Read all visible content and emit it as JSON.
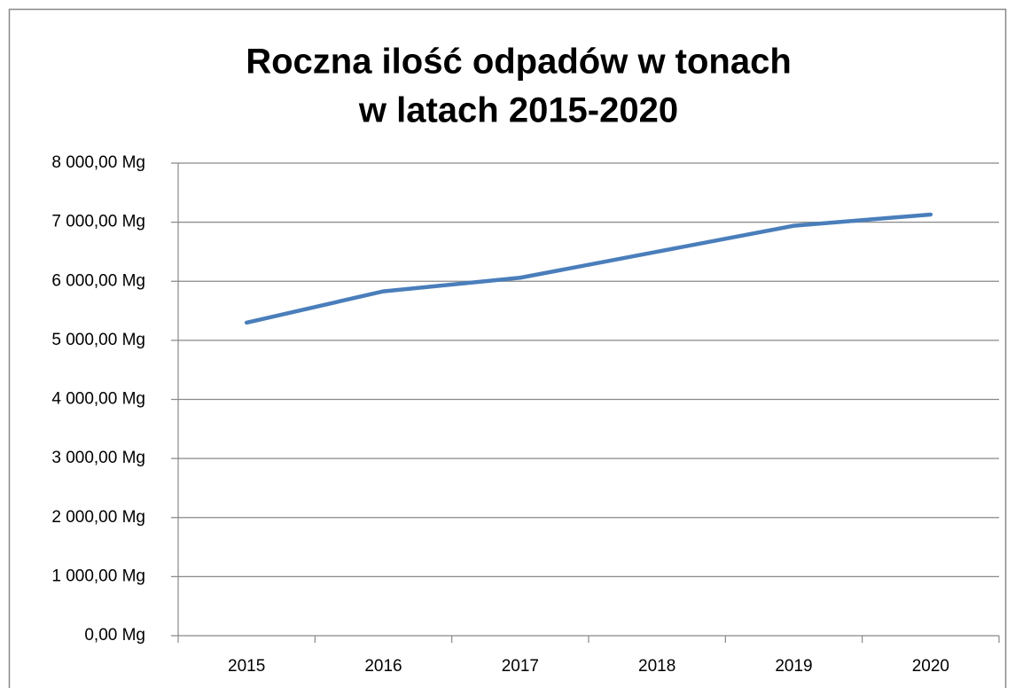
{
  "chart_data": {
    "type": "line",
    "title": [
      "Roczna ilość odpadów w tonach",
      "w latach 2015-2020"
    ],
    "categories": [
      "2015",
      "2016",
      "2017",
      "2018",
      "2019",
      "2020"
    ],
    "series": [
      {
        "color": "#4a7ebb",
        "values": [
          5300,
          5830,
          6060,
          6500,
          6940,
          7130
        ]
      }
    ],
    "ylim": [
      0,
      8000
    ],
    "yticks": [
      {
        "value": 0,
        "label": "0,00 Mg"
      },
      {
        "value": 1000,
        "label": "1 000,00 Mg"
      },
      {
        "value": 2000,
        "label": "2 000,00 Mg"
      },
      {
        "value": 3000,
        "label": "3 000,00 Mg"
      },
      {
        "value": 4000,
        "label": "4 000,00 Mg"
      },
      {
        "value": 5000,
        "label": "5 000,00 Mg"
      },
      {
        "value": 6000,
        "label": "6 000,00 Mg"
      },
      {
        "value": 7000,
        "label": "7 000,00 Mg"
      },
      {
        "value": 8000,
        "label": "8 000,00 Mg"
      }
    ],
    "grid": true
  }
}
